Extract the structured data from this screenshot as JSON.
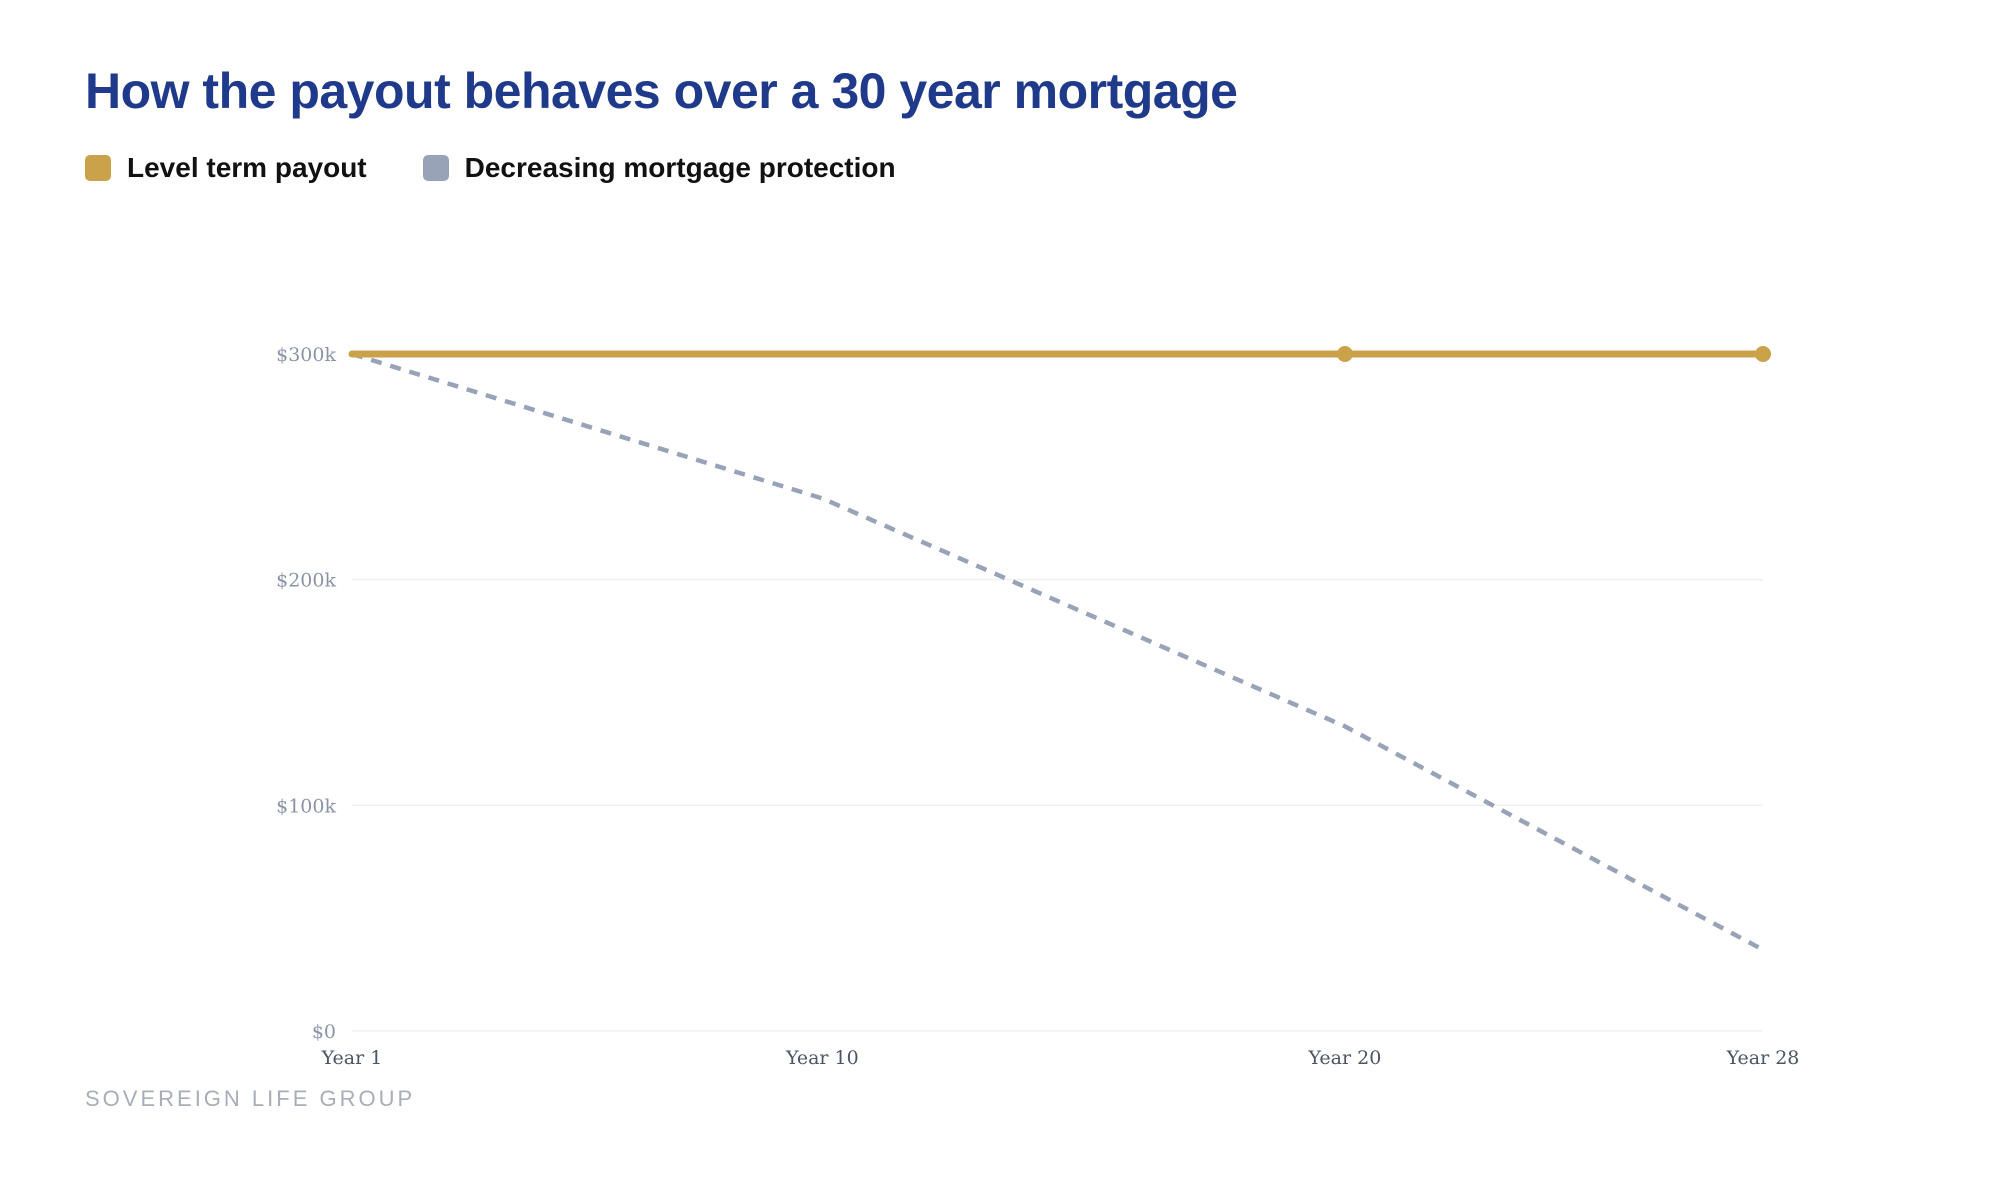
{
  "title": "How the payout behaves over a 30 year mortgage",
  "legend": [
    {
      "label": "Level term payout",
      "color": "#c9a24a"
    },
    {
      "label": "Decreasing mortgage protection",
      "color": "#98a3b8"
    }
  ],
  "footer": "SOVEREIGN LIFE GROUP",
  "chart_data": {
    "type": "line",
    "title": "How the payout behaves over a 30 year mortgage",
    "xlabel": "",
    "ylabel": "",
    "x": [
      1,
      10,
      20,
      28
    ],
    "x_tick_labels": [
      "Year 1",
      "Year 10",
      "Year 20",
      "Year 28"
    ],
    "y_ticks": [
      0,
      100000,
      200000,
      300000
    ],
    "y_tick_labels": [
      "$0",
      "$100k",
      "$200k",
      "$300k"
    ],
    "ylim": [
      0,
      300000
    ],
    "xlim": [
      1,
      28
    ],
    "grid": "horizontal",
    "legend_position": "top-left",
    "series": [
      {
        "name": "Level term payout",
        "color": "#c9a24a",
        "style": "solid",
        "markers_at": [
          20,
          28
        ],
        "values": [
          300000,
          300000,
          300000,
          300000
        ]
      },
      {
        "name": "Decreasing mortgage protection",
        "color": "#98a3b8",
        "style": "dashed",
        "values": [
          300000,
          236000,
          135000,
          36000
        ]
      }
    ]
  }
}
